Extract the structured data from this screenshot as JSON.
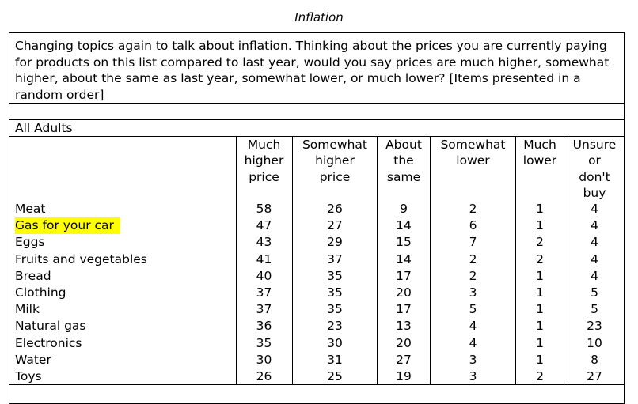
{
  "title": "Inflation",
  "question": "Changing topics again to talk about inflation. Thinking about the prices you are currently paying for products on this list compared to last year, would you say prices are much higher, somewhat higher, about the same as last year, somewhat lower, or much lower? [Items presented in a random order]",
  "group_label": "All Adults",
  "columns": [
    "Much\nhigher\nprice",
    "Somewhat\nhigher\nprice",
    "About\nthe\nsame",
    "Somewhat\nlower",
    "Much\nlower",
    "Unsure\nor\ndon't\nbuy"
  ],
  "highlight_color": "#ffff00",
  "highlighted_row": "Gas for your car",
  "rows": [
    {
      "label": "Meat",
      "values": [
        "58",
        "26",
        "9",
        "2",
        "1",
        "4"
      ]
    },
    {
      "label": "Gas for your car",
      "values": [
        "47",
        "27",
        "14",
        "6",
        "1",
        "4"
      ]
    },
    {
      "label": "Eggs",
      "values": [
        "43",
        "29",
        "15",
        "7",
        "2",
        "4"
      ]
    },
    {
      "label": "Fruits and vegetables",
      "values": [
        "41",
        "37",
        "14",
        "2",
        "2",
        "4"
      ]
    },
    {
      "label": "Bread",
      "values": [
        "40",
        "35",
        "17",
        "2",
        "1",
        "4"
      ]
    },
    {
      "label": "Clothing",
      "values": [
        "37",
        "35",
        "20",
        "3",
        "1",
        "5"
      ]
    },
    {
      "label": "Milk",
      "values": [
        "37",
        "35",
        "17",
        "5",
        "1",
        "5"
      ]
    },
    {
      "label": "Natural gas",
      "values": [
        "36",
        "23",
        "13",
        "4",
        "1",
        "23"
      ]
    },
    {
      "label": "Electronics",
      "values": [
        "35",
        "30",
        "20",
        "4",
        "1",
        "10"
      ]
    },
    {
      "label": "Water",
      "values": [
        "30",
        "31",
        "27",
        "3",
        "1",
        "8"
      ]
    },
    {
      "label": "Toys",
      "values": [
        "26",
        "25",
        "19",
        "3",
        "2",
        "27"
      ]
    }
  ]
}
